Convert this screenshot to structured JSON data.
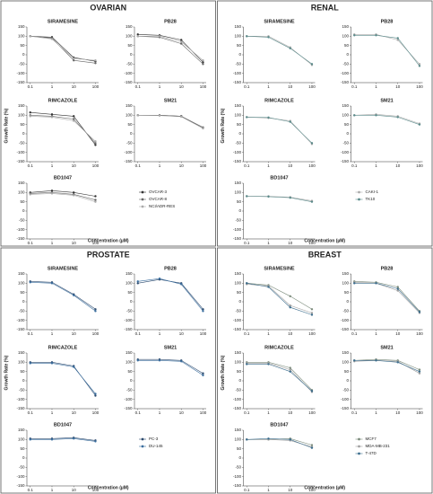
{
  "panels": [
    {
      "title": "OVARIAN",
      "xlabel": "Concentration (µM)",
      "ylabel": "Growth Rate (%)",
      "legend": [
        {
          "name": "OVCAR-3",
          "color": "#333333"
        },
        {
          "name": "OVCAR-8",
          "color": "#666666"
        },
        {
          "name": "NCI/ADR-RES",
          "color": "#aaaaaa"
        }
      ],
      "charts": [
        {
          "type": "line",
          "title": "SIRAMESINE",
          "series": [
            {
              "values": [
                100,
                95,
                -15,
                -35
              ]
            },
            {
              "values": [
                100,
                90,
                -30,
                -45
              ]
            },
            {
              "values": [
                100,
                85,
                -20,
                -30
              ]
            }
          ]
        },
        {
          "type": "line",
          "title": "PB28",
          "series": [
            {
              "values": [
                110,
                105,
                80,
                -40
              ]
            },
            {
              "values": [
                100,
                95,
                60,
                -50
              ]
            },
            {
              "values": [
                100,
                100,
                70,
                -30
              ]
            }
          ]
        },
        {
          "type": "line",
          "title": "RIMCAZOLE",
          "series": [
            {
              "values": [
                115,
                105,
                95,
                -60
              ]
            },
            {
              "values": [
                100,
                95,
                80,
                -50
              ]
            },
            {
              "values": [
                95,
                90,
                70,
                -40
              ]
            }
          ]
        },
        {
          "type": "line",
          "title": "SM21",
          "series": [
            {
              "values": [
                100,
                100,
                95,
                30
              ]
            },
            {
              "values": [
                100,
                100,
                95,
                35
              ]
            },
            {
              "values": [
                100,
                98,
                92,
                30
              ]
            }
          ]
        },
        {
          "type": "line",
          "title": "BD1047",
          "series": [
            {
              "values": [
                100,
                110,
                100,
                80
              ]
            },
            {
              "values": [
                95,
                100,
                90,
                60
              ]
            },
            {
              "values": [
                90,
                95,
                85,
                50
              ]
            }
          ]
        }
      ]
    },
    {
      "title": "RENAL",
      "xlabel": "Concentration (µM)",
      "ylabel": "Growth Rate (%)",
      "legend": [
        {
          "name": "CAKI-1",
          "color": "#aaaaaa"
        },
        {
          "name": "TK10",
          "color": "#5a8a8a"
        }
      ],
      "charts": [
        {
          "type": "line",
          "title": "SIRAMESINE",
          "series": [
            {
              "values": [
                100,
                100,
                40,
                -55
              ]
            },
            {
              "values": [
                100,
                95,
                35,
                -50
              ]
            }
          ]
        },
        {
          "type": "line",
          "title": "PB28",
          "series": [
            {
              "values": [
                110,
                110,
                80,
                -50
              ]
            },
            {
              "values": [
                105,
                105,
                90,
                -60
              ]
            }
          ]
        },
        {
          "type": "line",
          "title": "RIMCAZOLE",
          "series": [
            {
              "values": [
                90,
                85,
                70,
                -55
              ]
            },
            {
              "values": [
                90,
                88,
                65,
                -50
              ]
            }
          ]
        },
        {
          "type": "line",
          "title": "SM21",
          "series": [
            {
              "values": [
                100,
                105,
                95,
                55
              ]
            },
            {
              "values": [
                100,
                100,
                90,
                50
              ]
            }
          ]
        },
        {
          "type": "line",
          "title": "BD1047",
          "series": [
            {
              "values": [
                80,
                80,
                75,
                55
              ]
            },
            {
              "values": [
                80,
                78,
                72,
                50
              ]
            }
          ]
        }
      ]
    },
    {
      "title": "PROSTATE",
      "xlabel": "Concentration (µM)",
      "ylabel": "Growth Rate (%)",
      "legend": [
        {
          "name": "PC-3",
          "color": "#2c4a6e"
        },
        {
          "name": "DU-145",
          "color": "#3b6e9e"
        }
      ],
      "charts": [
        {
          "type": "line",
          "title": "SIRAMESINE",
          "series": [
            {
              "values": [
                110,
                105,
                40,
                -40
              ]
            },
            {
              "values": [
                105,
                100,
                35,
                -50
              ]
            }
          ]
        },
        {
          "type": "line",
          "title": "PB28",
          "series": [
            {
              "values": [
                100,
                120,
                100,
                -40
              ]
            },
            {
              "values": [
                110,
                125,
                95,
                -50
              ]
            }
          ]
        },
        {
          "type": "line",
          "title": "RIMCAZOLE",
          "series": [
            {
              "values": [
                100,
                100,
                80,
                -80
              ]
            },
            {
              "values": [
                95,
                95,
                75,
                -70
              ]
            }
          ]
        },
        {
          "type": "line",
          "title": "SM21",
          "series": [
            {
              "values": [
                115,
                115,
                110,
                40
              ]
            },
            {
              "values": [
                110,
                110,
                105,
                30
              ]
            }
          ]
        },
        {
          "type": "line",
          "title": "BD1047",
          "series": [
            {
              "values": [
                105,
                105,
                110,
                95
              ]
            },
            {
              "values": [
                100,
                100,
                105,
                90
              ]
            }
          ]
        }
      ]
    },
    {
      "title": "BREAST",
      "xlabel": "Concentration (µM)",
      "ylabel": "Growth Rate (%)",
      "legend": [
        {
          "name": "MCF7",
          "color": "#7a8a7a"
        },
        {
          "name": "MDA-MB-231",
          "color": "#a0a0a0"
        },
        {
          "name": "T-47D",
          "color": "#3d6e8e"
        }
      ],
      "charts": [
        {
          "type": "line",
          "title": "SIRAMESINE",
          "series": [
            {
              "values": [
                100,
                90,
                30,
                -40
              ]
            },
            {
              "values": [
                95,
                85,
                -20,
                -60
              ]
            },
            {
              "values": [
                100,
                80,
                -30,
                -70
              ]
            }
          ]
        },
        {
          "type": "line",
          "title": "PB28",
          "series": [
            {
              "values": [
                110,
                105,
                80,
                -50
              ]
            },
            {
              "values": [
                105,
                100,
                60,
                -60
              ]
            },
            {
              "values": [
                100,
                100,
                70,
                -55
              ]
            }
          ]
        },
        {
          "type": "line",
          "title": "RIMCAZOLE",
          "series": [
            {
              "values": [
                100,
                100,
                70,
                -50
              ]
            },
            {
              "values": [
                95,
                95,
                60,
                -60
              ]
            },
            {
              "values": [
                90,
                90,
                50,
                -55
              ]
            }
          ]
        },
        {
          "type": "line",
          "title": "SM21",
          "series": [
            {
              "values": [
                110,
                115,
                110,
                60
              ]
            },
            {
              "values": [
                105,
                110,
                105,
                40
              ]
            },
            {
              "values": [
                110,
                110,
                100,
                50
              ]
            }
          ]
        },
        {
          "type": "line",
          "title": "BD1047",
          "series": [
            {
              "values": [
                100,
                100,
                105,
                70
              ]
            },
            {
              "values": [
                100,
                100,
                95,
                60
              ]
            },
            {
              "values": [
                100,
                105,
                100,
                55
              ]
            }
          ]
        }
      ]
    }
  ],
  "x": [
    0.1,
    1,
    10,
    100
  ],
  "xscale": "log",
  "xlim": [
    0.07,
    140
  ],
  "xticks": [
    0.1,
    1,
    10,
    100
  ],
  "ylim": [
    -150,
    150
  ],
  "yticks": [
    -150,
    -100,
    -50,
    0,
    50,
    100,
    150
  ]
}
